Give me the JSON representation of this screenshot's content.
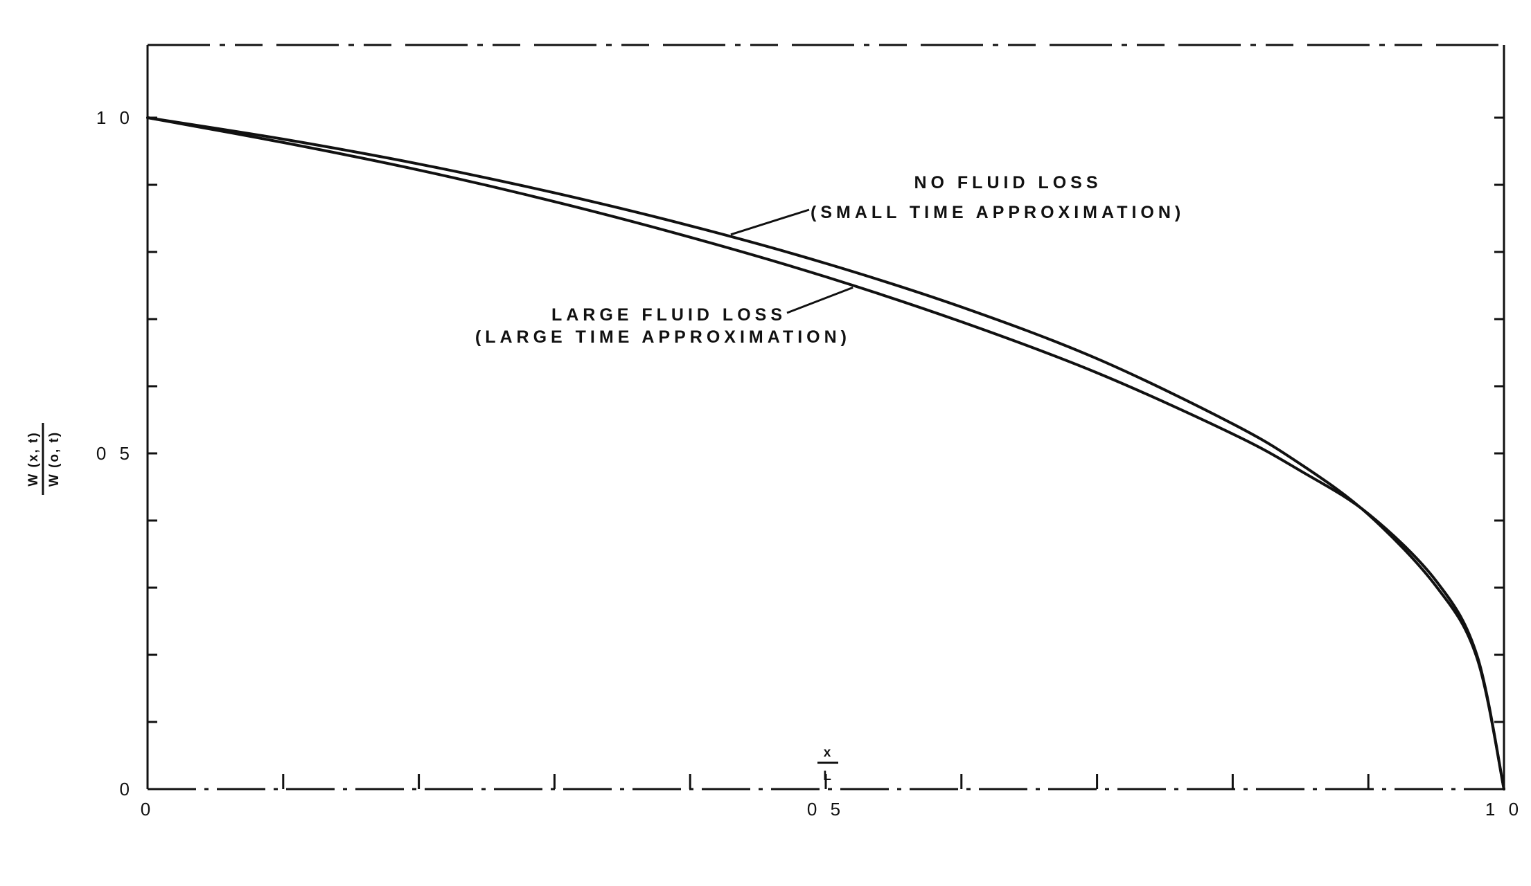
{
  "chart_data": {
    "type": "line",
    "title": "",
    "xlabel": {
      "numerator": "x",
      "denominator": "L"
    },
    "ylabel": {
      "numerator": "W (x, t)",
      "denominator": "W (o, t)"
    },
    "xlim": [
      0,
      1.0
    ],
    "ylim": [
      0,
      1.0
    ],
    "x_tick_labels": [
      {
        "value": 0,
        "label": "0"
      },
      {
        "value": 0.5,
        "label": "0 5"
      },
      {
        "value": 1.0,
        "label": "1 0"
      }
    ],
    "y_tick_labels": [
      {
        "value": 0,
        "label": "0"
      },
      {
        "value": 0.5,
        "label": "0 5"
      },
      {
        "value": 1.0,
        "label": "1 0"
      }
    ],
    "minor_tick_step": 0.1,
    "grid": false,
    "series": [
      {
        "name": "NO FLUID LOSS (SMALL TIME APPROXIMATION)",
        "x": [
          0,
          0.1,
          0.2,
          0.3,
          0.4,
          0.5,
          0.6,
          0.7,
          0.8,
          0.85,
          0.9,
          0.95,
          0.98,
          1.0
        ],
        "y": [
          1.0,
          0.968,
          0.931,
          0.888,
          0.839,
          0.783,
          0.718,
          0.641,
          0.544,
          0.484,
          0.409,
          0.302,
          0.196,
          0
        ]
      },
      {
        "name": "LARGE FLUID LOSS (LARGE TIME APPROXIMATION)",
        "x": [
          0,
          0.1,
          0.2,
          0.3,
          0.4,
          0.5,
          0.6,
          0.7,
          0.8,
          0.85,
          0.9,
          0.95,
          0.98,
          1.0
        ],
        "y": [
          1.0,
          0.963,
          0.922,
          0.875,
          0.822,
          0.763,
          0.696,
          0.62,
          0.529,
          0.474,
          0.41,
          0.31,
          0.2,
          0
        ]
      }
    ],
    "annotations": [
      {
        "series": 0,
        "lines": [
          "NO FLUID LOSS",
          "(SMALL TIME APPROXIMATION)"
        ],
        "arrow_to": {
          "x": 0.43,
          "y": 0.826
        }
      },
      {
        "series": 1,
        "lines": [
          "LARGE FLUID LOSS",
          "(LARGE TIME APPROXIMATION)"
        ],
        "arrow_to": {
          "x": 0.52,
          "y": 0.747
        }
      }
    ]
  }
}
